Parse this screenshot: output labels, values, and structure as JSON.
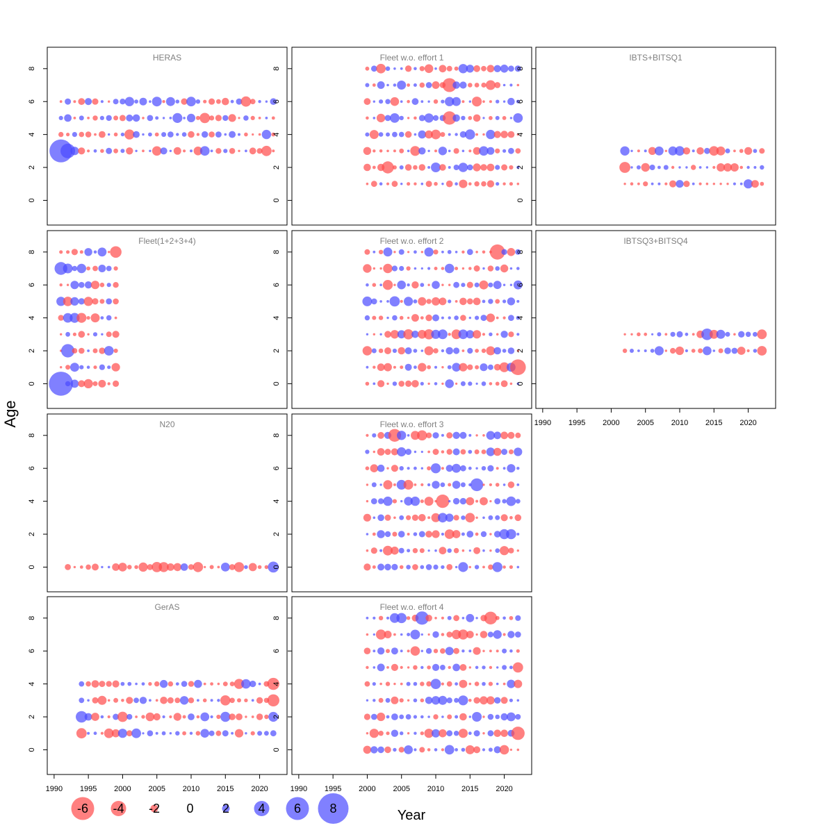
{
  "colors": {
    "positive": "#4a4aff",
    "negative": "#ff4a4a",
    "panel_title": "#7f7f7f",
    "frame": "#000000"
  },
  "labels": {
    "y_axis": "Age",
    "x_axis": "Year"
  },
  "chart_data": {
    "type": "scatter",
    "subtype": "bubble-residuals",
    "xlim": [
      1989,
      2024
    ],
    "ylim": [
      -1.5,
      9.3
    ],
    "x_ticks": [
      1990,
      1995,
      2000,
      2005,
      2010,
      2015,
      2020
    ],
    "y_ticks": [
      0,
      2,
      4,
      6,
      8
    ],
    "size_legend": [
      {
        "value": -6,
        "label": "-6"
      },
      {
        "value": -4,
        "label": "-4"
      },
      {
        "value": -2,
        "label": "-2"
      },
      {
        "value": 0,
        "label": "0"
      },
      {
        "value": 2,
        "label": "2"
      },
      {
        "value": 4,
        "label": "4"
      },
      {
        "value": 6,
        "label": "6"
      },
      {
        "value": 8,
        "label": "8"
      }
    ],
    "panels": [
      {
        "title": "HERAS",
        "col": 0,
        "row": 0,
        "years": [
          1991,
          2022
        ],
        "ages": [
          3,
          4,
          5,
          6
        ],
        "seed": 11,
        "big": [
          {
            "year": 1991,
            "age": 3,
            "value": 3.6
          },
          {
            "year": 1992,
            "age": 3,
            "value": 2.2
          }
        ]
      },
      {
        "title": "Fleet(1+2+3+4)",
        "col": 0,
        "row": 1,
        "years": [
          1991,
          1999
        ],
        "ages": [
          0,
          1,
          2,
          3,
          4,
          5,
          6,
          7,
          8
        ],
        "seed": 23,
        "big": [
          {
            "year": 1991,
            "age": 0,
            "value": 3.8
          },
          {
            "year": 1992,
            "age": 2,
            "value": 2.0
          },
          {
            "year": 1991,
            "age": 7,
            "value": 1.9
          },
          {
            "year": 1999,
            "age": 8,
            "value": -1.7
          }
        ]
      },
      {
        "title": "N20",
        "col": 0,
        "row": 2,
        "years": [
          1992,
          2022
        ],
        "ages": [
          0
        ],
        "seed": 37,
        "big": [
          {
            "year": 2022,
            "age": 0,
            "value": 1.6
          }
        ]
      },
      {
        "title": "GerAS",
        "col": 0,
        "row": 3,
        "years": [
          1994,
          2022
        ],
        "ages": [
          1,
          2,
          3,
          4
        ],
        "seed": 41,
        "big": [
          {
            "year": 1994,
            "age": 2,
            "value": 1.7
          },
          {
            "year": 2022,
            "age": 4,
            "value": -1.8
          },
          {
            "year": 2022,
            "age": 3,
            "value": -1.8
          }
        ]
      },
      {
        "title": "Fleet w.o. effort 1",
        "col": 1,
        "row": 0,
        "years": [
          2000,
          2022
        ],
        "ages": [
          1,
          2,
          3,
          4,
          5,
          6,
          7,
          8
        ],
        "seed": 53,
        "big": [
          {
            "year": 2012,
            "age": 7,
            "value": -2.1
          },
          {
            "year": 2012,
            "age": 5,
            "value": -2.0
          },
          {
            "year": 2003,
            "age": 2,
            "value": -1.8
          }
        ]
      },
      {
        "title": "Fleet w.o. effort 2",
        "col": 1,
        "row": 1,
        "years": [
          2000,
          2022
        ],
        "ages": [
          0,
          1,
          2,
          3,
          4,
          5,
          6,
          7,
          8
        ],
        "seed": 67,
        "big": [
          {
            "year": 2022,
            "age": 1,
            "value": -2.4
          },
          {
            "year": 2019,
            "age": 8,
            "value": -2.3
          }
        ]
      },
      {
        "title": "Fleet w.o. effort 3",
        "col": 1,
        "row": 2,
        "years": [
          2000,
          2022
        ],
        "ages": [
          0,
          1,
          2,
          3,
          4,
          5,
          6,
          7,
          8
        ],
        "seed": 71,
        "big": [
          {
            "year": 2011,
            "age": 4,
            "value": -2.0
          },
          {
            "year": 2016,
            "age": 5,
            "value": 1.9
          },
          {
            "year": 2004,
            "age": 8,
            "value": -1.9
          }
        ]
      },
      {
        "title": "Fleet w.o. effort 4",
        "col": 1,
        "row": 3,
        "years": [
          2000,
          2022
        ],
        "ages": [
          0,
          1,
          2,
          3,
          4,
          5,
          6,
          7,
          8
        ],
        "seed": 83,
        "big": [
          {
            "year": 2022,
            "age": 1,
            "value": -2.0
          },
          {
            "year": 2008,
            "age": 8,
            "value": 2.0
          },
          {
            "year": 2018,
            "age": 8,
            "value": -1.9
          }
        ]
      },
      {
        "title": "IBTS+BITSQ1",
        "col": 2,
        "row": 0,
        "years": [
          2002,
          2022
        ],
        "ages": [
          1,
          2,
          3
        ],
        "seed": 97,
        "big": [
          {
            "year": 2002,
            "age": 2,
            "value": -1.6
          }
        ]
      },
      {
        "title": "IBTSQ3+BITSQ4",
        "col": 2,
        "row": 1,
        "years": [
          2002,
          2022
        ],
        "ages": [
          2,
          3
        ],
        "seed": 101,
        "big": [
          {
            "year": 2014,
            "age": 3,
            "value": 1.7
          }
        ]
      }
    ]
  }
}
